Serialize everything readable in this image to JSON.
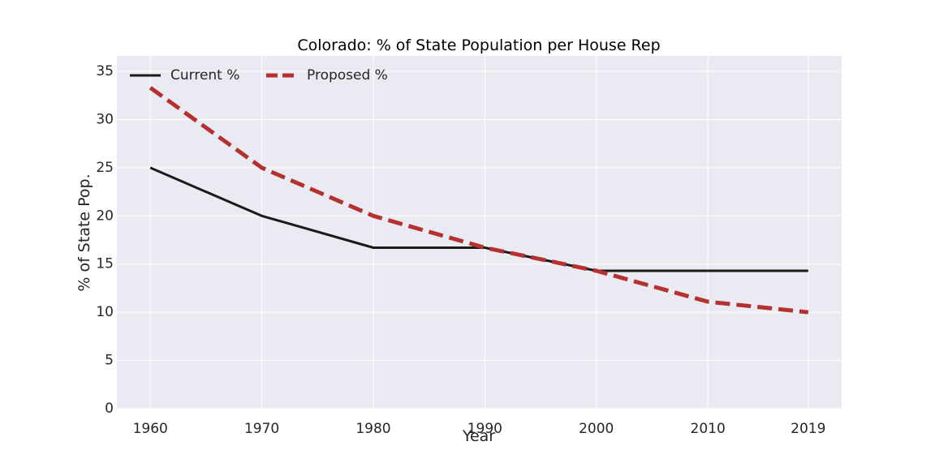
{
  "chart_data": {
    "type": "line",
    "title": "Colorado: % of State Population per House Rep",
    "xlabel": "Year",
    "ylabel": "% of State Pop.",
    "x": [
      1960,
      1970,
      1980,
      1990,
      2000,
      2010,
      2019
    ],
    "x_tick_labels": [
      "1960",
      "1970",
      "1980",
      "1990",
      "2000",
      "2010",
      "2019"
    ],
    "y_ticks": [
      0,
      5,
      10,
      15,
      20,
      25,
      30,
      35
    ],
    "y_tick_labels": [
      "0",
      "5",
      "10",
      "15",
      "20",
      "25",
      "30",
      "35"
    ],
    "xlim": [
      1957,
      2022
    ],
    "ylim": [
      0,
      36.6
    ],
    "grid": true,
    "legend": "top-left",
    "series": [
      {
        "name": "Current %",
        "values": [
          25.0,
          20.0,
          16.7,
          16.7,
          14.3,
          14.3,
          14.3
        ],
        "color": "#1a1a1a",
        "style": "solid"
      },
      {
        "name": "Proposed %",
        "values": [
          33.3,
          25.0,
          20.0,
          16.7,
          14.3,
          11.1,
          10.0
        ],
        "color": "#b5312f",
        "style": "dashed"
      }
    ],
    "colors": {
      "plot_background": "#eaeaf2",
      "grid": "#ffffff"
    }
  }
}
